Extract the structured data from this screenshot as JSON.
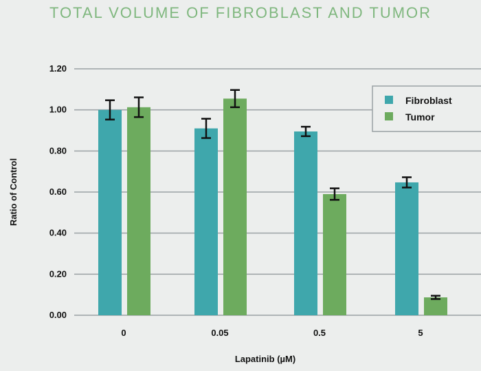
{
  "chart_data": {
    "type": "bar",
    "title": "TOTAL VOLUME OF FIBROBLAST AND TUMOR",
    "xlabel": "Lapatinib (µM)",
    "ylabel": "Ratio of Control",
    "categories": [
      "0",
      "0.05",
      "0.5",
      "5"
    ],
    "ylim": [
      0,
      1.2
    ],
    "yticks": [
      "0.00",
      "0.20",
      "0.40",
      "0.60",
      "0.80",
      "1.00",
      "1.20"
    ],
    "grid": true,
    "legend_position": "top-right",
    "series": [
      {
        "name": "Fibroblast",
        "color": "#3fa7ac",
        "values": [
          1.0,
          0.91,
          0.895,
          0.647
        ],
        "errors": [
          0.047,
          0.047,
          0.023,
          0.025
        ]
      },
      {
        "name": "Tumor",
        "color": "#6dab5e",
        "values": [
          1.013,
          1.055,
          0.59,
          0.087
        ],
        "errors": [
          0.048,
          0.042,
          0.028,
          0.008
        ]
      }
    ]
  }
}
